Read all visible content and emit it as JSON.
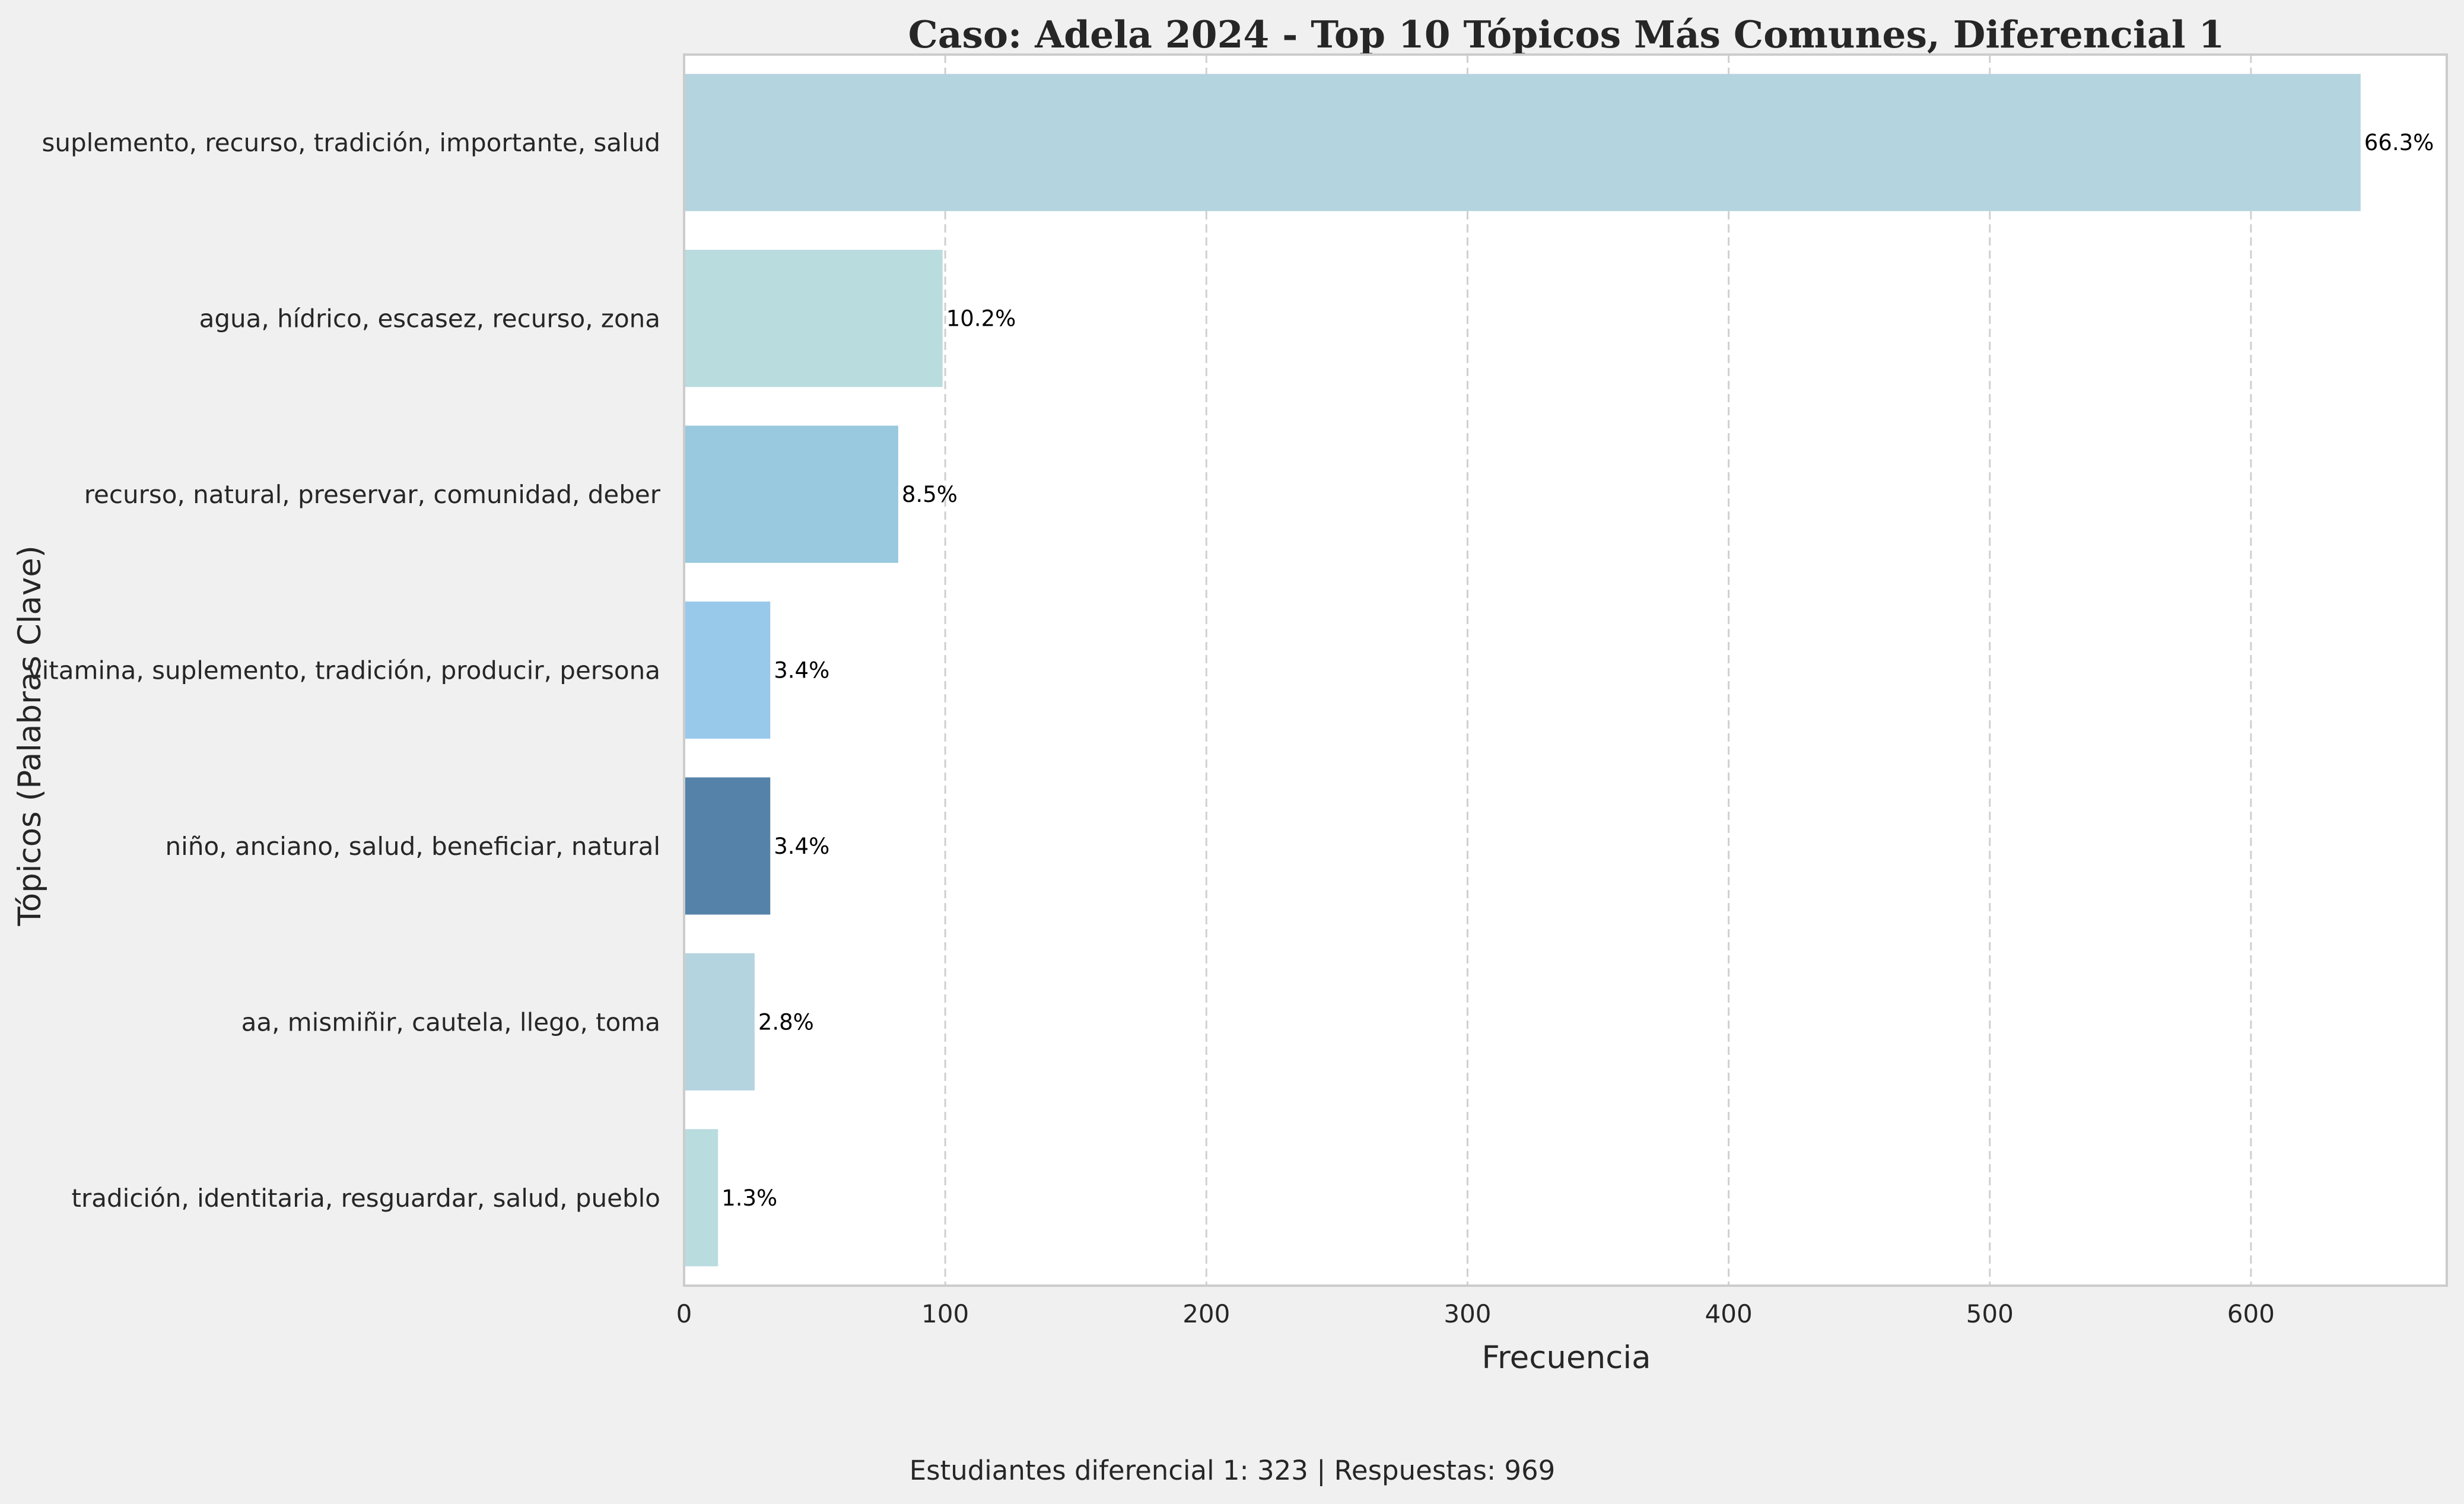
{
  "chart_data": {
    "type": "bar",
    "orientation": "horizontal",
    "title": "Caso: Adela 2024 - Top 10 Tópicos Más Comunes, Diferencial 1",
    "xlabel": "Frecuencia",
    "ylabel": "Tópicos (Palabras Clave)",
    "xlim": [
      0,
      675
    ],
    "xticks": [
      0,
      100,
      200,
      300,
      400,
      500,
      600
    ],
    "grid": "vertical dashed",
    "categories": [
      "suplemento, recurso, tradición, importante, salud",
      "agua, hídrico, escasez, recurso, zona",
      "recurso, natural, preservar, comunidad, deber",
      "vitamina, suplemento, tradición, producir, persona",
      "niño, anciano, salud, beneficiar, natural",
      "aa, mismiñir, cautela, llego, toma",
      "tradición, identitaria, resguardar, salud, pueblo"
    ],
    "values": [
      642,
      99,
      82,
      33,
      33,
      27,
      13
    ],
    "data_labels": [
      "66.3%",
      "10.2%",
      "8.5%",
      "3.4%",
      "3.4%",
      "2.8%",
      "1.3%"
    ],
    "colors": [
      "#b4d4df",
      "#b9dcdf",
      "#98c9de",
      "#98c9eb",
      "#5582a8",
      "#b4d4df",
      "#b9dcdf"
    ],
    "footnote": "Estudiantes diferencial 1: 323 | Respuestas: 969"
  }
}
